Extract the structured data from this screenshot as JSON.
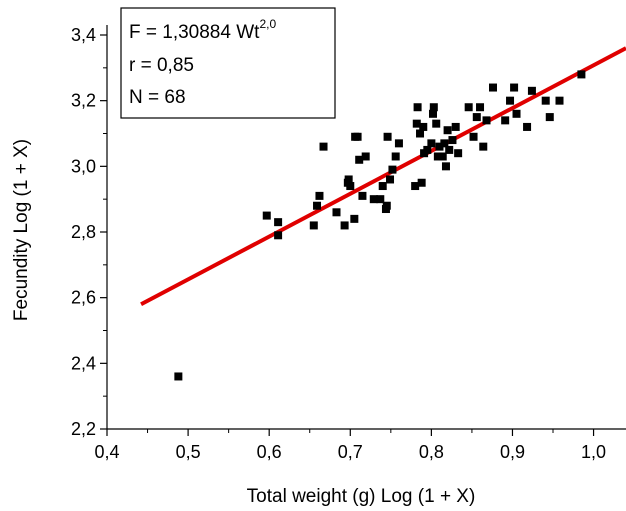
{
  "chart_data": {
    "type": "scatter",
    "xlabel": "Total weight (g) Log (1 + X)",
    "ylabel": "Fecundity Log (1 + X)",
    "xlim": [
      0.4,
      1.04
    ],
    "ylim": [
      2.2,
      3.4
    ],
    "x_ticks": [
      "0,4",
      "0,5",
      "0,6",
      "0,7",
      "0,8",
      "0,9",
      "1,0"
    ],
    "y_ticks": [
      "2,2",
      "2,4",
      "2,6",
      "2,8",
      "3,0",
      "3,2",
      "3,4"
    ],
    "x_tick_values": [
      0.4,
      0.5,
      0.6,
      0.7,
      0.8,
      0.9,
      1.0
    ],
    "y_tick_values": [
      2.2,
      2.4,
      2.6,
      2.8,
      3.0,
      3.2,
      3.4
    ],
    "grid": false,
    "legend_position": "top-left",
    "annotations": {
      "equation_base": "F = 1,30884 Wt",
      "equation_exp": "2,0",
      "r": "r = 0,85",
      "n": "N = 68"
    },
    "trendline": {
      "color": "#e00000",
      "points": [
        [
          0.442,
          2.58
        ],
        [
          1.04,
          3.36
        ]
      ]
    },
    "marker_color": "#000000",
    "points": [
      [
        0.488,
        2.36
      ],
      [
        0.597,
        2.85
      ],
      [
        0.611,
        2.79
      ],
      [
        0.611,
        2.83
      ],
      [
        0.655,
        2.82
      ],
      [
        0.659,
        2.88
      ],
      [
        0.662,
        2.91
      ],
      [
        0.667,
        3.06
      ],
      [
        0.683,
        2.86
      ],
      [
        0.693,
        2.82
      ],
      [
        0.697,
        2.95
      ],
      [
        0.698,
        2.96
      ],
      [
        0.7,
        2.94
      ],
      [
        0.705,
        2.84
      ],
      [
        0.706,
        3.09
      ],
      [
        0.709,
        3.09
      ],
      [
        0.711,
        3.02
      ],
      [
        0.715,
        2.91
      ],
      [
        0.719,
        3.03
      ],
      [
        0.729,
        2.9
      ],
      [
        0.737,
        2.9
      ],
      [
        0.74,
        2.94
      ],
      [
        0.744,
        2.87
      ],
      [
        0.745,
        2.88
      ],
      [
        0.746,
        3.09
      ],
      [
        0.749,
        2.96
      ],
      [
        0.752,
        2.99
      ],
      [
        0.756,
        3.03
      ],
      [
        0.76,
        3.07
      ],
      [
        0.78,
        2.94
      ],
      [
        0.782,
        3.13
      ],
      [
        0.783,
        3.18
      ],
      [
        0.786,
        3.1
      ],
      [
        0.788,
        2.95
      ],
      [
        0.79,
        3.12
      ],
      [
        0.791,
        3.04
      ],
      [
        0.795,
        3.05
      ],
      [
        0.8,
        3.07
      ],
      [
        0.802,
        3.16
      ],
      [
        0.803,
        3.18
      ],
      [
        0.806,
        3.13
      ],
      [
        0.808,
        3.03
      ],
      [
        0.81,
        3.06
      ],
      [
        0.814,
        3.03
      ],
      [
        0.816,
        3.07
      ],
      [
        0.818,
        3.0
      ],
      [
        0.82,
        3.11
      ],
      [
        0.822,
        3.05
      ],
      [
        0.826,
        3.08
      ],
      [
        0.83,
        3.12
      ],
      [
        0.833,
        3.04
      ],
      [
        0.846,
        3.18
      ],
      [
        0.852,
        3.09
      ],
      [
        0.856,
        3.15
      ],
      [
        0.86,
        3.18
      ],
      [
        0.864,
        3.06
      ],
      [
        0.868,
        3.14
      ],
      [
        0.876,
        3.24
      ],
      [
        0.891,
        3.14
      ],
      [
        0.897,
        3.2
      ],
      [
        0.902,
        3.24
      ],
      [
        0.905,
        3.16
      ],
      [
        0.918,
        3.12
      ],
      [
        0.924,
        3.23
      ],
      [
        0.941,
        3.2
      ],
      [
        0.946,
        3.15
      ],
      [
        0.958,
        3.2
      ],
      [
        0.985,
        3.28
      ]
    ]
  }
}
